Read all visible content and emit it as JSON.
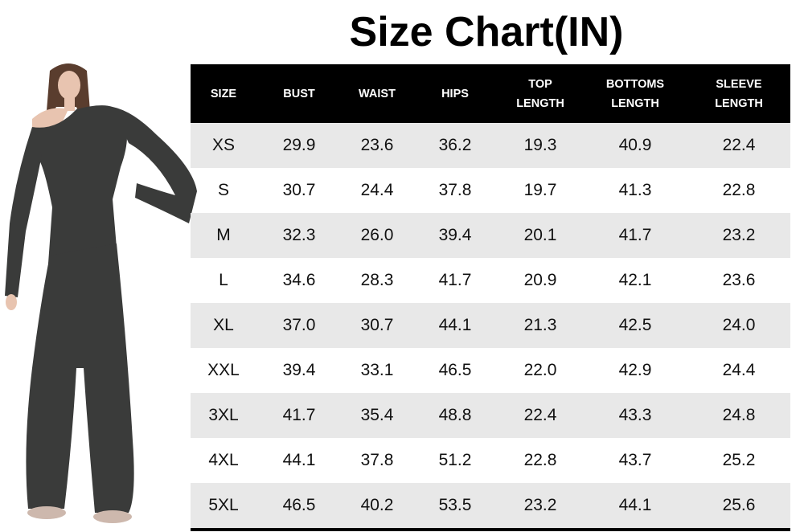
{
  "title": "Size Chart(IN)",
  "colors": {
    "header_bg": "#000000",
    "header_text": "#ffffff",
    "stripe": "#e8e8e8",
    "garment": "#3a3b3a"
  },
  "table": {
    "headers": [
      [
        "SIZE"
      ],
      [
        "BUST"
      ],
      [
        "WAIST"
      ],
      [
        "HIPS"
      ],
      [
        "TOP",
        "LENGTH"
      ],
      [
        "BOTTOMS",
        "LENGTH"
      ],
      [
        "SLEEVE",
        "LENGTH"
      ]
    ],
    "rows": [
      [
        "XS",
        "29.9",
        "23.6",
        "36.2",
        "19.3",
        "40.9",
        "22.4"
      ],
      [
        "S",
        "30.7",
        "24.4",
        "37.8",
        "19.7",
        "41.3",
        "22.8"
      ],
      [
        "M",
        "32.3",
        "26.0",
        "39.4",
        "20.1",
        "41.7",
        "23.2"
      ],
      [
        "L",
        "34.6",
        "28.3",
        "41.7",
        "20.9",
        "42.1",
        "23.6"
      ],
      [
        "XL",
        "37.0",
        "30.7",
        "44.1",
        "21.3",
        "42.5",
        "24.0"
      ],
      [
        "XXL",
        "39.4",
        "33.1",
        "46.5",
        "22.0",
        "42.9",
        "24.4"
      ],
      [
        "3XL",
        "41.7",
        "35.4",
        "48.8",
        "22.4",
        "43.3",
        "24.8"
      ],
      [
        "4XL",
        "44.1",
        "37.8",
        "51.2",
        "22.8",
        "43.7",
        "25.2"
      ],
      [
        "5XL",
        "46.5",
        "40.2",
        "53.5",
        "23.2",
        "44.1",
        "25.6"
      ]
    ]
  }
}
